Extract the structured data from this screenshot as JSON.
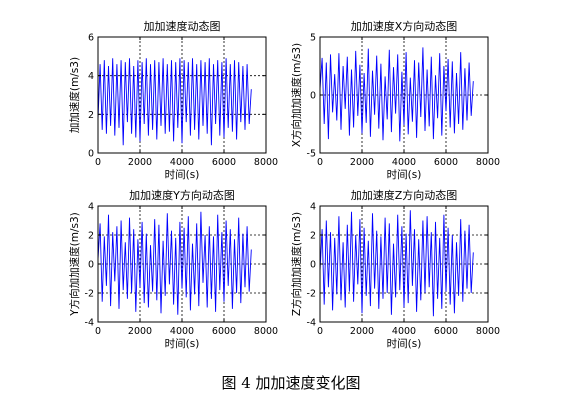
{
  "figure_caption": "图 4  加加速度变化图",
  "colors": {
    "line": "#0000ff",
    "axis": "#000000",
    "grid": "#000000",
    "background": "#ffffff"
  },
  "chart_data": [
    {
      "type": "line",
      "title": "加加速度动态图",
      "xlabel": "时间(s)",
      "ylabel": "加加速度(m/s3)",
      "xlim": [
        0,
        8000
      ],
      "ylim": [
        0,
        6
      ],
      "xticks": [
        0,
        2000,
        4000,
        6000,
        8000
      ],
      "yticks": [
        0,
        2,
        4,
        6
      ],
      "xtick_labels": [
        "0",
        "2000",
        "4000",
        "6000",
        "8000"
      ],
      "ytick_labels": [
        "0",
        "2",
        "4",
        "6"
      ],
      "grid": true,
      "grid_style": "dotted",
      "series": [
        {
          "color": "#0000ff",
          "x": [
            0,
            100,
            200,
            300,
            400,
            500,
            600,
            700,
            800,
            900,
            1000,
            1100,
            1200,
            1300,
            1400,
            1500,
            1600,
            1700,
            1800,
            1900,
            2000,
            2100,
            2200,
            2300,
            2400,
            2500,
            2600,
            2700,
            2800,
            2900,
            3000,
            3100,
            3200,
            3300,
            3400,
            3500,
            3600,
            3700,
            3800,
            3900,
            4000,
            4100,
            4200,
            4300,
            4400,
            4500,
            4600,
            4700,
            4800,
            4900,
            5000,
            5100,
            5200,
            5300,
            5400,
            5500,
            5600,
            5700,
            5800,
            5900,
            6000,
            6100,
            6200,
            6300,
            6400,
            6500,
            6600,
            6700,
            6800,
            6900,
            7000,
            7100,
            7200,
            7300
          ],
          "y": [
            1.7,
            4.6,
            1.2,
            4.8,
            1.0,
            4.5,
            1.4,
            4.9,
            0.9,
            4.6,
            1.3,
            4.8,
            0.4,
            4.7,
            1.6,
            4.9,
            1.0,
            4.5,
            0.8,
            4.8,
            0.6,
            4.7,
            1.5,
            4.9,
            0.9,
            4.6,
            1.2,
            4.8,
            0.7,
            4.7,
            1.4,
            4.9,
            1.0,
            4.6,
            1.1,
            4.8,
            0.6,
            4.7,
            1.3,
            4.9,
            0.5,
            4.8,
            1.6,
            4.7,
            0.9,
            4.9,
            1.2,
            4.6,
            0.7,
            4.8,
            1.4,
            4.7,
            1.0,
            4.9,
            0.4,
            4.6,
            1.5,
            4.8,
            0.9,
            4.7,
            0.8,
            4.9,
            1.3,
            4.6,
            1.1,
            4.8,
            0.7,
            4.7,
            1.6,
            4.5,
            1.2,
            4.6,
            1.5,
            3.3
          ]
        }
      ]
    },
    {
      "type": "line",
      "title": "加加速度X方向动态图",
      "xlabel": "时间(s)",
      "ylabel": "X方向加加速度(m/s3)",
      "xlim": [
        0,
        8000
      ],
      "ylim": [
        -5,
        5
      ],
      "xticks": [
        0,
        2000,
        4000,
        6000,
        8000
      ],
      "yticks": [
        -5,
        0,
        5
      ],
      "xtick_labels": [
        "0",
        "2000",
        "4000",
        "6000",
        "8000"
      ],
      "ytick_labels": [
        "-5",
        "0",
        "5"
      ],
      "grid": true,
      "grid_style": "dotted",
      "series": [
        {
          "color": "#0000ff",
          "x": [
            0,
            100,
            200,
            300,
            400,
            500,
            600,
            700,
            800,
            900,
            1000,
            1100,
            1200,
            1300,
            1400,
            1500,
            1600,
            1700,
            1800,
            1900,
            2000,
            2100,
            2200,
            2300,
            2400,
            2500,
            2600,
            2700,
            2800,
            2900,
            3000,
            3100,
            3200,
            3300,
            3400,
            3500,
            3600,
            3700,
            3800,
            3900,
            4000,
            4100,
            4200,
            4300,
            4400,
            4500,
            4600,
            4700,
            4800,
            4900,
            5000,
            5100,
            5200,
            5300,
            5400,
            5500,
            5600,
            5700,
            5800,
            5900,
            6000,
            6100,
            6200,
            6300,
            6400,
            6500,
            6600,
            6700,
            6800,
            6900,
            7000,
            7100,
            7200,
            7300
          ],
          "y": [
            0.5,
            3.2,
            -2.5,
            2.8,
            -3.8,
            3.5,
            -1.5,
            1.8,
            -2.2,
            3.6,
            -3.0,
            2.5,
            -1.2,
            3.3,
            -3.5,
            2.2,
            -2.8,
            3.8,
            -1.8,
            2.6,
            -3.3,
            1.9,
            -2.4,
            4.0,
            -3.6,
            2.1,
            -1.7,
            3.4,
            -2.9,
            2.7,
            -3.9,
            1.6,
            -2.1,
            3.9,
            -3.2,
            2.4,
            -1.6,
            3.5,
            -4.0,
            2.0,
            -2.6,
            3.7,
            -3.4,
            1.5,
            -2.3,
            3.0,
            -3.7,
            2.8,
            -1.9,
            4.1,
            -3.1,
            2.2,
            -2.7,
            3.3,
            -3.8,
            1.7,
            -2.0,
            3.6,
            -3.5,
            2.5,
            -1.4,
            3.1,
            -2.8,
            2.9,
            -3.3,
            1.9,
            -2.5,
            3.7,
            -3.0,
            2.3,
            -2.2,
            2.8,
            -1.8,
            1.2
          ]
        }
      ]
    },
    {
      "type": "line",
      "title": "加加速度Y方向动态图",
      "xlabel": "时间(s)",
      "ylabel": "Y方向加加速度(m/s3)",
      "xlim": [
        0,
        8000
      ],
      "ylim": [
        -4,
        4
      ],
      "xticks": [
        0,
        2000,
        4000,
        6000,
        8000
      ],
      "yticks": [
        -4,
        -2,
        0,
        2,
        4
      ],
      "xtick_labels": [
        "0",
        "2000",
        "4000",
        "6000",
        "8000"
      ],
      "ytick_labels": [
        "-4",
        "-2",
        "0",
        "2",
        "4"
      ],
      "grid": true,
      "grid_style": "dotted",
      "series": [
        {
          "color": "#0000ff",
          "x": [
            0,
            100,
            200,
            300,
            400,
            500,
            600,
            700,
            800,
            900,
            1000,
            1100,
            1200,
            1300,
            1400,
            1500,
            1600,
            1700,
            1800,
            1900,
            2000,
            2100,
            2200,
            2300,
            2400,
            2500,
            2600,
            2700,
            2800,
            2900,
            3000,
            3100,
            3200,
            3300,
            3400,
            3500,
            3600,
            3700,
            3800,
            3900,
            4000,
            4100,
            4200,
            4300,
            4400,
            4500,
            4600,
            4700,
            4800,
            4900,
            5000,
            5100,
            5200,
            5300,
            5400,
            5500,
            5600,
            5700,
            5800,
            5900,
            6000,
            6100,
            6200,
            6300,
            6400,
            6500,
            6600,
            6700,
            6800,
            6900,
            7000,
            7100,
            7200,
            7300
          ],
          "y": [
            0.3,
            2.8,
            -2.6,
            1.9,
            -1.5,
            3.4,
            -2.9,
            2.2,
            -1.2,
            2.6,
            -3.1,
            3.0,
            -1.8,
            1.5,
            -2.4,
            3.2,
            -2.0,
            2.4,
            -3.3,
            1.7,
            -1.6,
            2.9,
            -2.7,
            2.1,
            -3.0,
            1.3,
            -1.9,
            3.1,
            -2.5,
            2.7,
            -3.4,
            1.6,
            -2.2,
            3.5,
            -1.4,
            2.3,
            -2.8,
            1.8,
            -3.5,
            2.9,
            -1.7,
            2.5,
            -2.3,
            3.3,
            -3.2,
            1.4,
            -2.1,
            2.8,
            -2.9,
            3.6,
            -1.3,
            2.0,
            -3.0,
            2.6,
            -2.4,
            1.9,
            -3.3,
            3.4,
            -1.8,
            2.2,
            -2.6,
            3.0,
            -1.5,
            2.4,
            -3.1,
            1.7,
            -2.0,
            3.2,
            -2.7,
            2.1,
            -1.6,
            2.6,
            -1.9,
            1.0
          ]
        }
      ]
    },
    {
      "type": "line",
      "title": "加加速度Z方向动态图",
      "xlabel": "时间(s)",
      "ylabel": "Z方向加加速度(m/s3)",
      "xlim": [
        0,
        8000
      ],
      "ylim": [
        -4,
        4
      ],
      "xticks": [
        0,
        2000,
        4000,
        6000,
        8000
      ],
      "yticks": [
        -4,
        -2,
        0,
        2,
        4
      ],
      "xtick_labels": [
        "0",
        "2000",
        "4000",
        "6000",
        "8000"
      ],
      "ytick_labels": [
        "-4",
        "-2",
        "0",
        "2",
        "4"
      ],
      "grid": true,
      "grid_style": "dotted",
      "series": [
        {
          "color": "#0000ff",
          "x": [
            0,
            100,
            200,
            300,
            400,
            500,
            600,
            700,
            800,
            900,
            1000,
            1100,
            1200,
            1300,
            1400,
            1500,
            1600,
            1700,
            1800,
            1900,
            2000,
            2100,
            2200,
            2300,
            2400,
            2500,
            2600,
            2700,
            2800,
            2900,
            3000,
            3100,
            3200,
            3300,
            3400,
            3500,
            3600,
            3700,
            3800,
            3900,
            4000,
            4100,
            4200,
            4300,
            4400,
            4500,
            4600,
            4700,
            4800,
            4900,
            5000,
            5100,
            5200,
            5300,
            5400,
            5500,
            5600,
            5700,
            5800,
            5900,
            6000,
            6100,
            6200,
            6300,
            6400,
            6500,
            6600,
            6700,
            6800,
            6900,
            7000,
            7100,
            7200,
            7300
          ],
          "y": [
            -0.5,
            2.4,
            -2.8,
            3.0,
            -1.6,
            2.2,
            -3.2,
            1.8,
            -2.1,
            3.3,
            -2.5,
            1.5,
            -3.0,
            2.7,
            -1.9,
            3.6,
            -2.6,
            2.0,
            -1.4,
            3.1,
            -3.4,
            2.5,
            -2.2,
            1.6,
            -2.9,
            3.5,
            -1.7,
            2.3,
            -3.1,
            1.9,
            -2.4,
            3.2,
            -2.0,
            2.8,
            -3.5,
            1.4,
            -2.3,
            3.4,
            -1.8,
            2.6,
            -3.0,
            2.1,
            -2.7,
            3.7,
            -1.5,
            2.4,
            -3.3,
            1.7,
            -2.5,
            3.0,
            -2.0,
            3.3,
            -1.6,
            2.2,
            -3.6,
            2.9,
            -2.4,
            1.8,
            -3.1,
            3.4,
            -1.9,
            2.5,
            -2.8,
            2.0,
            -3.4,
            1.5,
            -2.2,
            3.1,
            -2.6,
            2.3,
            -1.7,
            2.7,
            -2.0,
            0.8
          ]
        }
      ]
    }
  ]
}
